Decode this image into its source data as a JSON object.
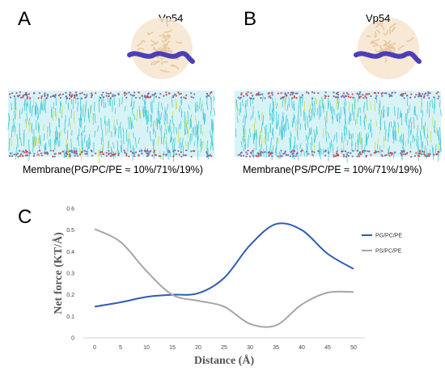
{
  "panels": {
    "a": {
      "letter": "A",
      "protein": "Vp54",
      "caption": "Membrane(PG/PC/PE ≈ 10%/71%/19%)"
    },
    "b": {
      "letter": "B",
      "protein": "Vp54",
      "caption": "Membrane(PS/PC/PE ≈ 10%/71%/19%)"
    },
    "c": {
      "letter": "C"
    }
  },
  "colors": {
    "protein": "#e9c9a0",
    "peptide": "#4b3fb8",
    "lipid_tail": "#3fc8d8",
    "lipid_accent": "#c8e040",
    "headgroup": "#7a6ea8",
    "series_pg": "#2f5bb5",
    "series_ps": "#a6a6a6"
  },
  "chart_data": {
    "type": "line",
    "x": [
      0,
      5,
      10,
      15,
      20,
      25,
      30,
      35,
      40,
      45,
      50
    ],
    "series": [
      {
        "name": "PG/PC/PE",
        "values": [
          0.145,
          0.165,
          0.19,
          0.2,
          0.207,
          0.278,
          0.43,
          0.528,
          0.5,
          0.39,
          0.32
        ]
      },
      {
        "name": "PS/PC/PE",
        "values": [
          0.505,
          0.445,
          0.31,
          0.2,
          0.172,
          0.145,
          0.065,
          0.058,
          0.155,
          0.21,
          0.213
        ]
      }
    ],
    "xlabel": "Distance (Å)",
    "ylabel": "Net force (KT/Å)",
    "xticks": [
      "0",
      "5",
      "10",
      "15",
      "20",
      "25",
      "30",
      "35",
      "40",
      "45",
      "50"
    ],
    "yticks": [
      "0",
      "0.1",
      "0.2",
      "0.3",
      "0.4",
      "0.5",
      "0.6"
    ],
    "ylim": [
      0,
      0.6
    ],
    "grid": false,
    "legend_position": "right"
  }
}
